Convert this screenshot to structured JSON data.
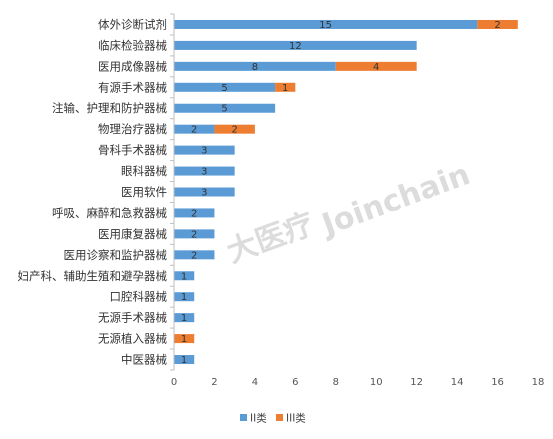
{
  "chart_data": {
    "type": "bar",
    "orientation": "horizontal",
    "stacked": true,
    "categories": [
      "体外诊断试剂",
      "临床检验器械",
      "医用成像器械",
      "有源手术器械",
      "注输、护理和防护器械",
      "物理治疗器械",
      "骨科手术器械",
      "眼科器械",
      "医用软件",
      "呼吸、麻醉和急救器械",
      "医用康复器械",
      "医用诊察和监护器械",
      "妇产科、辅助生殖和避孕器械",
      "口腔科器械",
      "无源手术器械",
      "无源植入器械",
      "中医器械"
    ],
    "series": [
      {
        "name": "II类",
        "color": "#5b9bd5",
        "values": [
          15,
          12,
          8,
          5,
          5,
          2,
          3,
          3,
          3,
          2,
          2,
          2,
          1,
          1,
          1,
          0,
          1
        ]
      },
      {
        "name": "III类",
        "color": "#ed7d31",
        "values": [
          2,
          0,
          4,
          1,
          0,
          2,
          0,
          0,
          0,
          0,
          0,
          0,
          0,
          0,
          0,
          1,
          0
        ]
      }
    ],
    "xlim": [
      0,
      18
    ],
    "xticks": [
      0,
      2,
      4,
      6,
      8,
      10,
      12,
      14,
      16,
      18
    ],
    "grid": false,
    "legend": "bottom"
  },
  "watermark": {
    "brand_cn": "大医疗",
    "brand_en": "Joinchain"
  }
}
